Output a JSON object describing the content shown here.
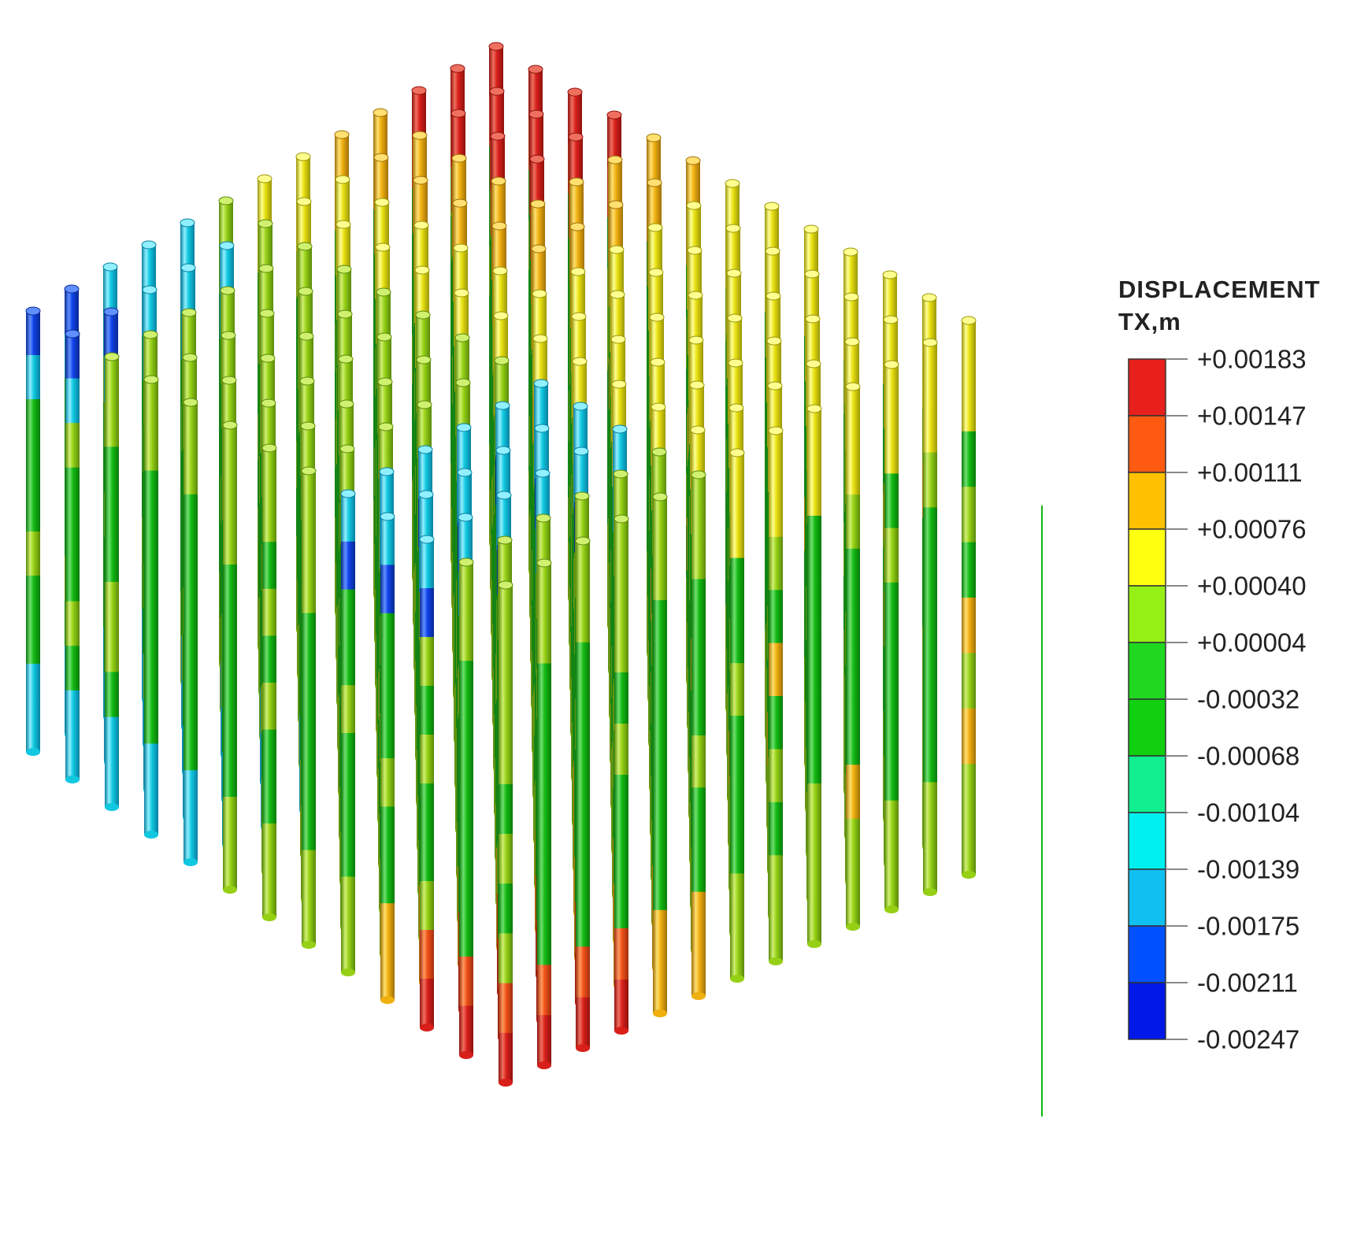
{
  "legend": {
    "title_line1": "DISPLACEMENT",
    "title_line2": "TX,m",
    "labels": [
      "+0.00183",
      "+0.00147",
      "+0.00111",
      "+0.00076",
      "+0.00040",
      "+0.00004",
      "-0.00032",
      "-0.00068",
      "-0.00104",
      "-0.00139",
      "-0.00175",
      "-0.00211",
      "-0.00247"
    ],
    "band_colors": [
      "#e8201c",
      "#ff5a12",
      "#ffc000",
      "#ffff10",
      "#95f015",
      "#20d820",
      "#10d010",
      "#10f090",
      "#00f0f0",
      "#10c0f0",
      "#0050ff",
      "#0018e8"
    ]
  },
  "scene": {
    "palette": {
      "red": "#d81f1a",
      "orange": "#f05018",
      "amber": "#f0b010",
      "yellow": "#e8e010",
      "lime": "#95d015",
      "green": "#12b812",
      "cyan": "#10c8e0",
      "blue": "#1040e8"
    }
  }
}
